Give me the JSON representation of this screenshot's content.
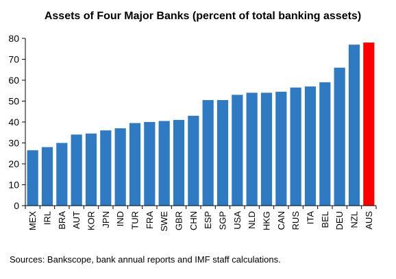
{
  "chart_data": {
    "type": "bar",
    "title": "Assets of Four Major Banks (percent of total banking assets)",
    "categories": [
      "MEX",
      "IRL",
      "BRA",
      "AUT",
      "KOR",
      "JPN",
      "IND",
      "TUR",
      "FRA",
      "SWE",
      "GBR",
      "CHN",
      "ESP",
      "SGP",
      "USA",
      "NLD",
      "HKG",
      "CAN",
      "RUS",
      "ITA",
      "BEL",
      "DEU",
      "NZL",
      "AUS"
    ],
    "values": [
      26.5,
      28,
      30,
      34,
      34.5,
      36,
      37,
      39.5,
      40,
      40.5,
      41,
      43,
      50.5,
      50.5,
      53,
      54,
      54,
      54.5,
      56.5,
      57,
      59,
      66,
      77,
      78
    ],
    "highlight_category": "AUS",
    "ylim": [
      0,
      80
    ],
    "yticks": [
      0,
      10,
      20,
      30,
      40,
      50,
      60,
      70,
      80
    ],
    "xlabel": "",
    "ylabel": "",
    "grid": false,
    "colors": {
      "bar": "#2E7BC4",
      "highlight": "#FF0000"
    }
  },
  "source_note": "Sources:  Bankscope, bank annual reports and IMF staff calculations."
}
